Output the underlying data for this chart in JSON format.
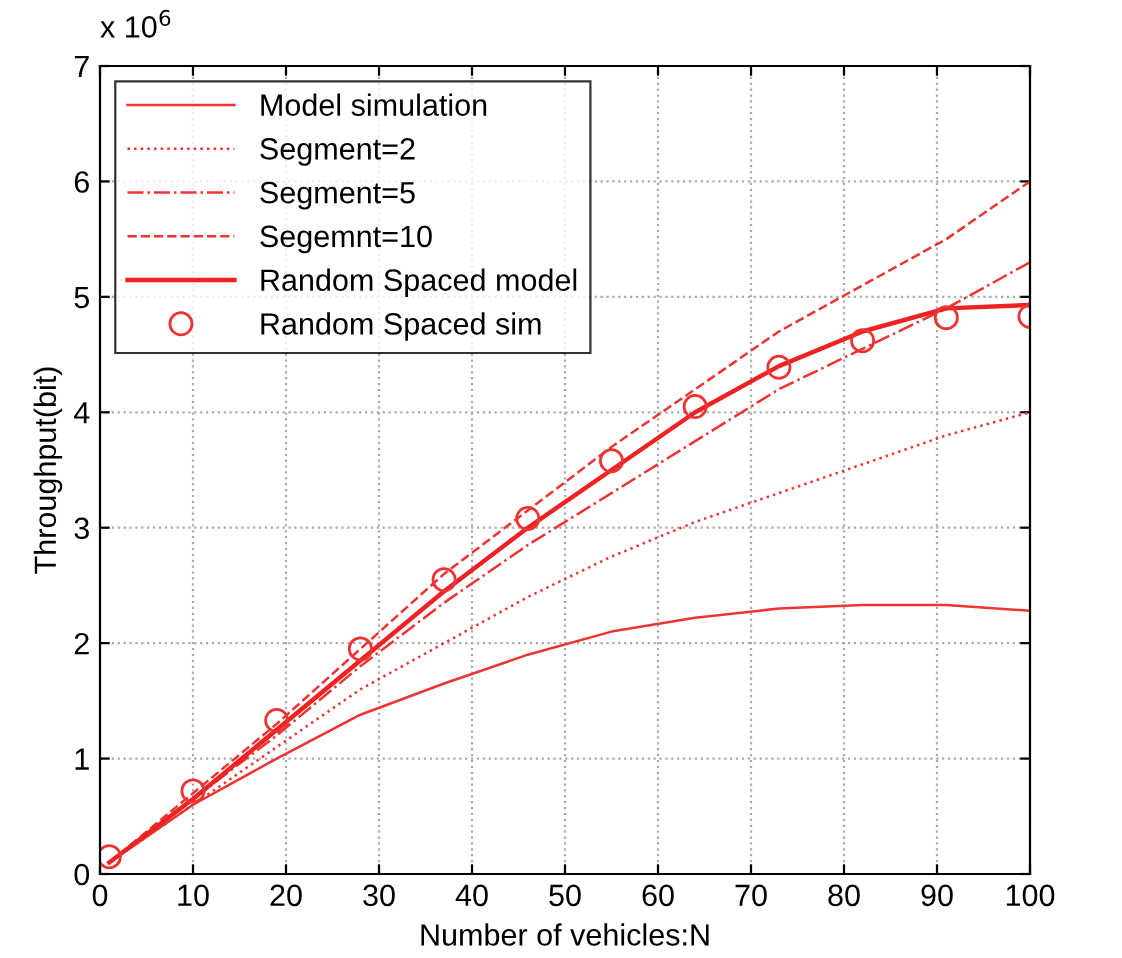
{
  "chart_data": {
    "type": "line",
    "xlabel": "Number of vehicles:N",
    "ylabel": "Throughput(bit)",
    "annotations": [
      "x 10$^{6}$"
    ],
    "x": [
      1,
      10,
      19,
      28,
      37,
      46,
      55,
      64,
      73,
      82,
      91,
      100
    ],
    "xlim": [
      0,
      100
    ],
    "xticks": [
      0,
      10,
      20,
      30,
      40,
      50,
      60,
      70,
      80,
      90,
      100
    ],
    "ylim": [
      0,
      7
    ],
    "yticks": [
      0,
      1,
      2,
      3,
      4,
      5,
      6,
      7
    ],
    "grid": true,
    "legend": "top left",
    "series": [
      {
        "name": "Model simulation",
        "color": "#ee3333",
        "line_style": "solid",
        "values": [
          0.1,
          0.6,
          1.0,
          1.38,
          1.65,
          1.9,
          2.1,
          2.22,
          2.3,
          2.33,
          2.33,
          2.28
        ]
      },
      {
        "name": "Segment=2",
        "color": "#ee3333",
        "line_style": "dotted",
        "values": [
          0.1,
          0.6,
          1.1,
          1.6,
          2.0,
          2.4,
          2.75,
          3.05,
          3.3,
          3.55,
          3.8,
          4.0
        ]
      },
      {
        "name": "Segment=5",
        "color": "#ee3333",
        "line_style": "dashdot",
        "values": [
          0.1,
          0.65,
          1.2,
          1.8,
          2.35,
          2.85,
          3.3,
          3.75,
          4.2,
          4.55,
          4.9,
          5.3
        ]
      },
      {
        "name": "Segemnt=10",
        "color": "#ee3333",
        "line_style": "dashed",
        "values": [
          0.1,
          0.7,
          1.3,
          1.95,
          2.6,
          3.15,
          3.7,
          4.2,
          4.7,
          5.1,
          5.5,
          6.0
        ]
      },
      {
        "name": "Random Spaced model",
        "color": "#ee2222",
        "line_style": "solid",
        "values": [
          0.1,
          0.65,
          1.25,
          1.85,
          2.45,
          3.0,
          3.5,
          4.0,
          4.4,
          4.7,
          4.9,
          4.93
        ]
      },
      {
        "name": "Random Spaced sim",
        "color": "#ee3333",
        "type": "scatter",
        "marker": "circle",
        "values": [
          0.15,
          0.72,
          1.33,
          1.95,
          2.55,
          3.08,
          3.58,
          4.05,
          4.39,
          4.62,
          4.82,
          4.83
        ]
      }
    ]
  }
}
